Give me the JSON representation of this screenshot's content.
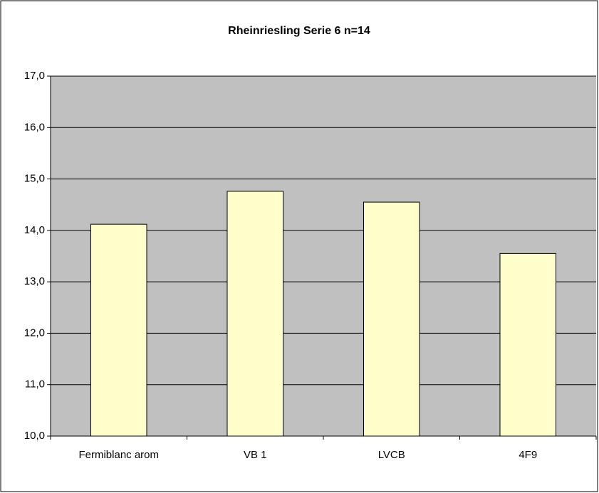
{
  "chart_data": {
    "type": "bar",
    "title": "Rheinriesling Serie 6 n=14",
    "categories": [
      "Fermiblanc arom",
      "VB 1",
      "LVCB",
      "4F9"
    ],
    "values": [
      14.12,
      14.76,
      14.55,
      13.55
    ],
    "color": "#ffffcc",
    "plot_background": "#c0c0c0",
    "ylim": [
      10,
      17
    ],
    "yticks": [
      {
        "value": 10,
        "label": "10,0"
      },
      {
        "value": 11,
        "label": "11,0"
      },
      {
        "value": 12,
        "label": "12,0"
      },
      {
        "value": 13,
        "label": "13,0"
      },
      {
        "value": 14,
        "label": "14,0"
      },
      {
        "value": 15,
        "label": "15,0"
      },
      {
        "value": 16,
        "label": "16,0"
      },
      {
        "value": 17,
        "label": "17,0"
      }
    ],
    "grid": true
  }
}
